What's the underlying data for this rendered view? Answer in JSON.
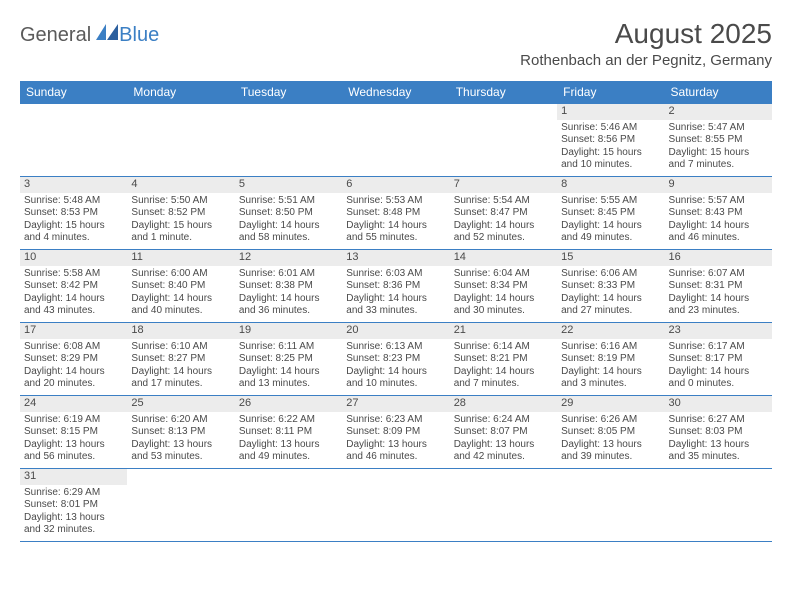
{
  "logo": {
    "part1": "General",
    "part2": "Blue"
  },
  "title": "August 2025",
  "location": "Rothenbach an der Pegnitz, Germany",
  "colors": {
    "header_bg": "#3b7fc4",
    "header_text": "#ffffff",
    "day_num_bg": "#ececec",
    "border": "#3b7fc4",
    "text": "#4a4a4a"
  },
  "weekdays": [
    "Sunday",
    "Monday",
    "Tuesday",
    "Wednesday",
    "Thursday",
    "Friday",
    "Saturday"
  ],
  "grid": [
    [
      null,
      null,
      null,
      null,
      null,
      {
        "n": "1",
        "sr": "5:46 AM",
        "ss": "8:56 PM",
        "dl": "15 hours and 10 minutes."
      },
      {
        "n": "2",
        "sr": "5:47 AM",
        "ss": "8:55 PM",
        "dl": "15 hours and 7 minutes."
      }
    ],
    [
      {
        "n": "3",
        "sr": "5:48 AM",
        "ss": "8:53 PM",
        "dl": "15 hours and 4 minutes."
      },
      {
        "n": "4",
        "sr": "5:50 AM",
        "ss": "8:52 PM",
        "dl": "15 hours and 1 minute."
      },
      {
        "n": "5",
        "sr": "5:51 AM",
        "ss": "8:50 PM",
        "dl": "14 hours and 58 minutes."
      },
      {
        "n": "6",
        "sr": "5:53 AM",
        "ss": "8:48 PM",
        "dl": "14 hours and 55 minutes."
      },
      {
        "n": "7",
        "sr": "5:54 AM",
        "ss": "8:47 PM",
        "dl": "14 hours and 52 minutes."
      },
      {
        "n": "8",
        "sr": "5:55 AM",
        "ss": "8:45 PM",
        "dl": "14 hours and 49 minutes."
      },
      {
        "n": "9",
        "sr": "5:57 AM",
        "ss": "8:43 PM",
        "dl": "14 hours and 46 minutes."
      }
    ],
    [
      {
        "n": "10",
        "sr": "5:58 AM",
        "ss": "8:42 PM",
        "dl": "14 hours and 43 minutes."
      },
      {
        "n": "11",
        "sr": "6:00 AM",
        "ss": "8:40 PM",
        "dl": "14 hours and 40 minutes."
      },
      {
        "n": "12",
        "sr": "6:01 AM",
        "ss": "8:38 PM",
        "dl": "14 hours and 36 minutes."
      },
      {
        "n": "13",
        "sr": "6:03 AM",
        "ss": "8:36 PM",
        "dl": "14 hours and 33 minutes."
      },
      {
        "n": "14",
        "sr": "6:04 AM",
        "ss": "8:34 PM",
        "dl": "14 hours and 30 minutes."
      },
      {
        "n": "15",
        "sr": "6:06 AM",
        "ss": "8:33 PM",
        "dl": "14 hours and 27 minutes."
      },
      {
        "n": "16",
        "sr": "6:07 AM",
        "ss": "8:31 PM",
        "dl": "14 hours and 23 minutes."
      }
    ],
    [
      {
        "n": "17",
        "sr": "6:08 AM",
        "ss": "8:29 PM",
        "dl": "14 hours and 20 minutes."
      },
      {
        "n": "18",
        "sr": "6:10 AM",
        "ss": "8:27 PM",
        "dl": "14 hours and 17 minutes."
      },
      {
        "n": "19",
        "sr": "6:11 AM",
        "ss": "8:25 PM",
        "dl": "14 hours and 13 minutes."
      },
      {
        "n": "20",
        "sr": "6:13 AM",
        "ss": "8:23 PM",
        "dl": "14 hours and 10 minutes."
      },
      {
        "n": "21",
        "sr": "6:14 AM",
        "ss": "8:21 PM",
        "dl": "14 hours and 7 minutes."
      },
      {
        "n": "22",
        "sr": "6:16 AM",
        "ss": "8:19 PM",
        "dl": "14 hours and 3 minutes."
      },
      {
        "n": "23",
        "sr": "6:17 AM",
        "ss": "8:17 PM",
        "dl": "14 hours and 0 minutes."
      }
    ],
    [
      {
        "n": "24",
        "sr": "6:19 AM",
        "ss": "8:15 PM",
        "dl": "13 hours and 56 minutes."
      },
      {
        "n": "25",
        "sr": "6:20 AM",
        "ss": "8:13 PM",
        "dl": "13 hours and 53 minutes."
      },
      {
        "n": "26",
        "sr": "6:22 AM",
        "ss": "8:11 PM",
        "dl": "13 hours and 49 minutes."
      },
      {
        "n": "27",
        "sr": "6:23 AM",
        "ss": "8:09 PM",
        "dl": "13 hours and 46 minutes."
      },
      {
        "n": "28",
        "sr": "6:24 AM",
        "ss": "8:07 PM",
        "dl": "13 hours and 42 minutes."
      },
      {
        "n": "29",
        "sr": "6:26 AM",
        "ss": "8:05 PM",
        "dl": "13 hours and 39 minutes."
      },
      {
        "n": "30",
        "sr": "6:27 AM",
        "ss": "8:03 PM",
        "dl": "13 hours and 35 minutes."
      }
    ],
    [
      {
        "n": "31",
        "sr": "6:29 AM",
        "ss": "8:01 PM",
        "dl": "13 hours and 32 minutes."
      },
      null,
      null,
      null,
      null,
      null,
      null
    ]
  ]
}
